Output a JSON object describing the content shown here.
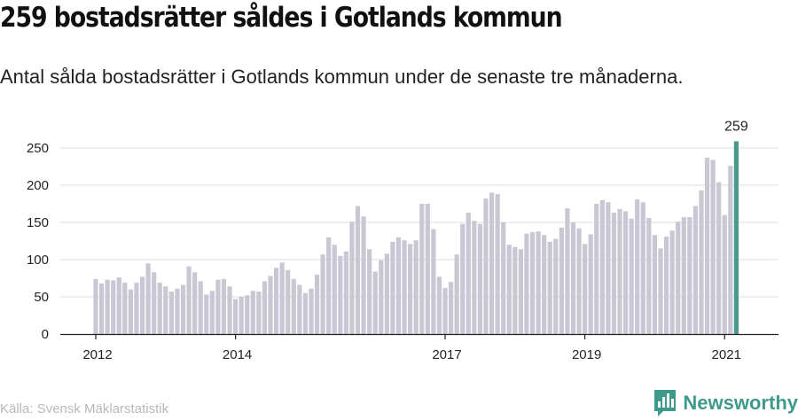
{
  "header": {
    "title": "259 bostadsrätter såldes i Gotlands kommun",
    "subtitle": "Antal sålda bostadsrätter i Gotlands kommun under de senaste tre månaderna."
  },
  "footer": {
    "source": "Källa: Svensk Mäklarstatistik",
    "brand": "Newsworthy"
  },
  "colors": {
    "bar": "#c8c7d3",
    "highlight": "#4a9a8c",
    "grid": "#dddddd",
    "brand": "#3f9a8c"
  },
  "chart_data": {
    "type": "bar",
    "title": "",
    "xlabel": "",
    "ylabel": "",
    "ylim": [
      0,
      260
    ],
    "yticks": [
      0,
      50,
      100,
      150,
      200,
      250
    ],
    "xticks": [
      {
        "label": "2012",
        "index": 0
      },
      {
        "label": "2014",
        "index": 24
      },
      {
        "label": "2017",
        "index": 60
      },
      {
        "label": "2019",
        "index": 84
      },
      {
        "label": "2021",
        "index": 108
      }
    ],
    "grid": true,
    "highlight_index": 110,
    "highlight_label": "259",
    "values": [
      74,
      68,
      73,
      72,
      76,
      69,
      60,
      69,
      77,
      95,
      83,
      69,
      64,
      57,
      61,
      66,
      91,
      83,
      71,
      53,
      58,
      73,
      74,
      64,
      47,
      50,
      52,
      58,
      57,
      71,
      78,
      89,
      96,
      86,
      74,
      66,
      55,
      61,
      80,
      107,
      130,
      120,
      105,
      111,
      151,
      172,
      158,
      114,
      84,
      99,
      108,
      124,
      130,
      126,
      121,
      126,
      175,
      175,
      141,
      77,
      62,
      70,
      107,
      148,
      163,
      152,
      148,
      182,
      190,
      188,
      150,
      120,
      117,
      114,
      135,
      137,
      138,
      133,
      124,
      128,
      143,
      169,
      150,
      142,
      121,
      134,
      175,
      180,
      177,
      163,
      168,
      165,
      155,
      181,
      177,
      156,
      133,
      115,
      131,
      139,
      151,
      157,
      157,
      172,
      193,
      237,
      234,
      204,
      160,
      226,
      259
    ]
  }
}
